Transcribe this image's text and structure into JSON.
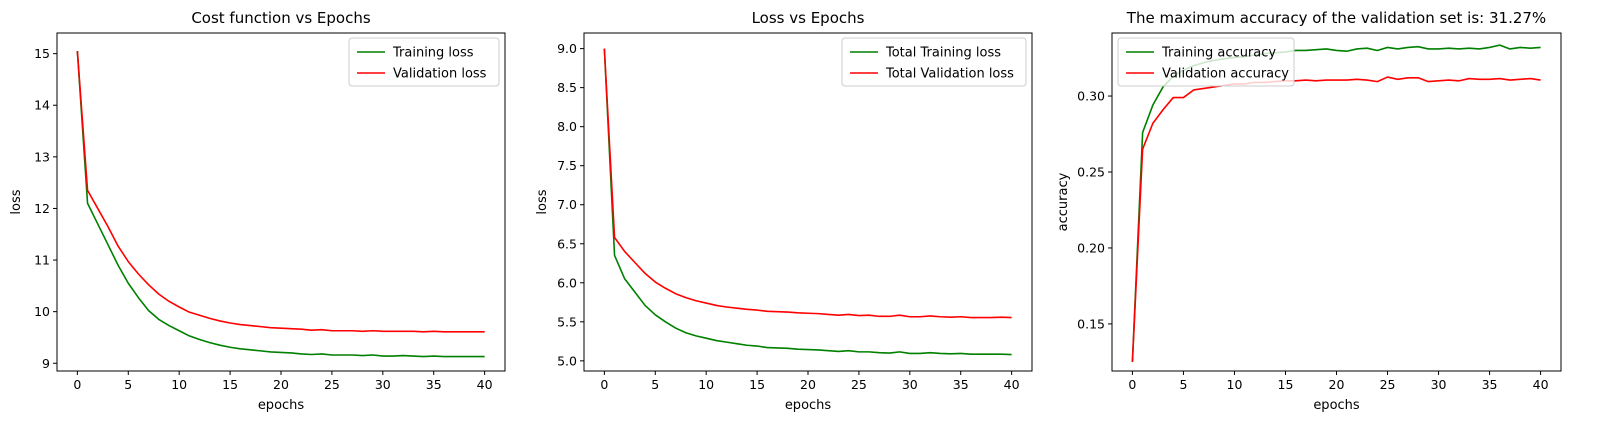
{
  "chart_data": [
    {
      "type": "line",
      "title": "Cost function vs Epochs",
      "xlabel": "epochs",
      "ylabel": "loss",
      "xlim": [
        -2,
        42
      ],
      "ylim": [
        8.85,
        15.4
      ],
      "xticks": [
        0,
        5,
        10,
        15,
        20,
        25,
        30,
        35,
        40
      ],
      "yticks": [
        9,
        10,
        11,
        12,
        13,
        14,
        15
      ],
      "tick_decimals": 0,
      "legend_position": "upper right",
      "x": [
        0,
        1,
        2,
        3,
        4,
        5,
        6,
        7,
        8,
        9,
        10,
        11,
        12,
        13,
        14,
        15,
        16,
        17,
        18,
        19,
        20,
        21,
        22,
        23,
        24,
        25,
        26,
        27,
        28,
        29,
        30,
        31,
        32,
        33,
        34,
        35,
        36,
        37,
        38,
        39,
        40
      ],
      "series": [
        {
          "name": "Training loss",
          "color": "#008000",
          "values": [
            15.05,
            12.1,
            11.7,
            11.3,
            10.9,
            10.55,
            10.27,
            10.02,
            9.85,
            9.73,
            9.63,
            9.53,
            9.46,
            9.4,
            9.35,
            9.31,
            9.28,
            9.26,
            9.24,
            9.22,
            9.21,
            9.2,
            9.18,
            9.17,
            9.18,
            9.16,
            9.16,
            9.16,
            9.15,
            9.16,
            9.14,
            9.14,
            9.15,
            9.14,
            9.13,
            9.14,
            9.13,
            9.13,
            9.13,
            9.13,
            9.13
          ]
        },
        {
          "name": "Validation loss",
          "color": "#ff0000",
          "values": [
            15.05,
            12.35,
            12.0,
            11.65,
            11.27,
            10.97,
            10.73,
            10.52,
            10.34,
            10.2,
            10.09,
            9.99,
            9.93,
            9.87,
            9.82,
            9.78,
            9.75,
            9.73,
            9.71,
            9.69,
            9.68,
            9.67,
            9.66,
            9.64,
            9.65,
            9.63,
            9.63,
            9.63,
            9.62,
            9.63,
            9.62,
            9.62,
            9.62,
            9.62,
            9.61,
            9.62,
            9.61,
            9.61,
            9.61,
            9.61,
            9.61
          ]
        }
      ]
    },
    {
      "type": "line",
      "title": "Loss vs Epochs",
      "xlabel": "epochs",
      "ylabel": "loss",
      "xlim": [
        -2,
        42
      ],
      "ylim": [
        4.87,
        9.2
      ],
      "xticks": [
        0,
        5,
        10,
        15,
        20,
        25,
        30,
        35,
        40
      ],
      "yticks": [
        5.0,
        5.5,
        6.0,
        6.5,
        7.0,
        7.5,
        8.0,
        8.5,
        9.0
      ],
      "tick_decimals": 1,
      "legend_position": "upper right",
      "x": [
        0,
        1,
        2,
        3,
        4,
        5,
        6,
        7,
        8,
        9,
        10,
        11,
        12,
        13,
        14,
        15,
        16,
        17,
        18,
        19,
        20,
        21,
        22,
        23,
        24,
        25,
        26,
        27,
        28,
        29,
        30,
        31,
        32,
        33,
        34,
        35,
        36,
        37,
        38,
        39,
        40
      ],
      "series": [
        {
          "name": "Total Training loss",
          "color": "#008000",
          "values": [
            9.0,
            6.35,
            6.05,
            5.88,
            5.71,
            5.59,
            5.5,
            5.42,
            5.36,
            5.32,
            5.29,
            5.26,
            5.24,
            5.22,
            5.2,
            5.19,
            5.17,
            5.165,
            5.16,
            5.15,
            5.145,
            5.14,
            5.13,
            5.12,
            5.13,
            5.115,
            5.115,
            5.105,
            5.1,
            5.115,
            5.095,
            5.095,
            5.105,
            5.095,
            5.09,
            5.095,
            5.085,
            5.085,
            5.085,
            5.085,
            5.08
          ]
        },
        {
          "name": "Total Validation loss",
          "color": "#ff0000",
          "values": [
            9.0,
            6.58,
            6.4,
            6.26,
            6.12,
            6.01,
            5.93,
            5.86,
            5.81,
            5.77,
            5.74,
            5.71,
            5.69,
            5.675,
            5.66,
            5.65,
            5.635,
            5.63,
            5.625,
            5.615,
            5.61,
            5.605,
            5.595,
            5.585,
            5.595,
            5.58,
            5.585,
            5.57,
            5.57,
            5.585,
            5.565,
            5.565,
            5.575,
            5.565,
            5.56,
            5.565,
            5.555,
            5.555,
            5.555,
            5.56,
            5.555
          ]
        }
      ]
    },
    {
      "type": "line",
      "title": "The maximum accuracy of the validation set is: 31.27%",
      "xlabel": "epochs",
      "ylabel": "accuracy",
      "xlim": [
        -2,
        42
      ],
      "ylim": [
        0.119,
        0.3415
      ],
      "xticks": [
        0,
        5,
        10,
        15,
        20,
        25,
        30,
        35,
        40
      ],
      "yticks": [
        0.15,
        0.2,
        0.25,
        0.3
      ],
      "tick_decimals": 2,
      "legend_position": "upper left",
      "x": [
        0,
        1,
        2,
        3,
        4,
        5,
        6,
        7,
        8,
        9,
        10,
        11,
        12,
        13,
        14,
        15,
        16,
        17,
        18,
        19,
        20,
        21,
        22,
        23,
        24,
        25,
        26,
        27,
        28,
        29,
        30,
        31,
        32,
        33,
        34,
        35,
        36,
        37,
        38,
        39,
        40
      ],
      "series": [
        {
          "name": "Training accuracy",
          "color": "#008000",
          "values": [
            0.125,
            0.276,
            0.294,
            0.306,
            0.313,
            0.317,
            0.32,
            0.322,
            0.3235,
            0.3245,
            0.3255,
            0.326,
            0.327,
            0.328,
            0.3285,
            0.329,
            0.33,
            0.33,
            0.3305,
            0.331,
            0.33,
            0.3295,
            0.331,
            0.3315,
            0.33,
            0.332,
            0.331,
            0.332,
            0.3325,
            0.331,
            0.331,
            0.3315,
            0.331,
            0.3315,
            0.331,
            0.332,
            0.3335,
            0.331,
            0.332,
            0.3315,
            0.332
          ]
        },
        {
          "name": "Validation accuracy",
          "color": "#ff0000",
          "values": [
            0.125,
            0.265,
            0.282,
            0.291,
            0.299,
            0.299,
            0.304,
            0.305,
            0.306,
            0.307,
            0.308,
            0.308,
            0.309,
            0.309,
            0.3095,
            0.31,
            0.31,
            0.3105,
            0.31,
            0.3105,
            0.3105,
            0.3105,
            0.311,
            0.3105,
            0.3095,
            0.3125,
            0.311,
            0.312,
            0.312,
            0.3095,
            0.31,
            0.3105,
            0.31,
            0.3115,
            0.311,
            0.311,
            0.3115,
            0.3105,
            0.311,
            0.3115,
            0.3105
          ]
        }
      ]
    }
  ]
}
